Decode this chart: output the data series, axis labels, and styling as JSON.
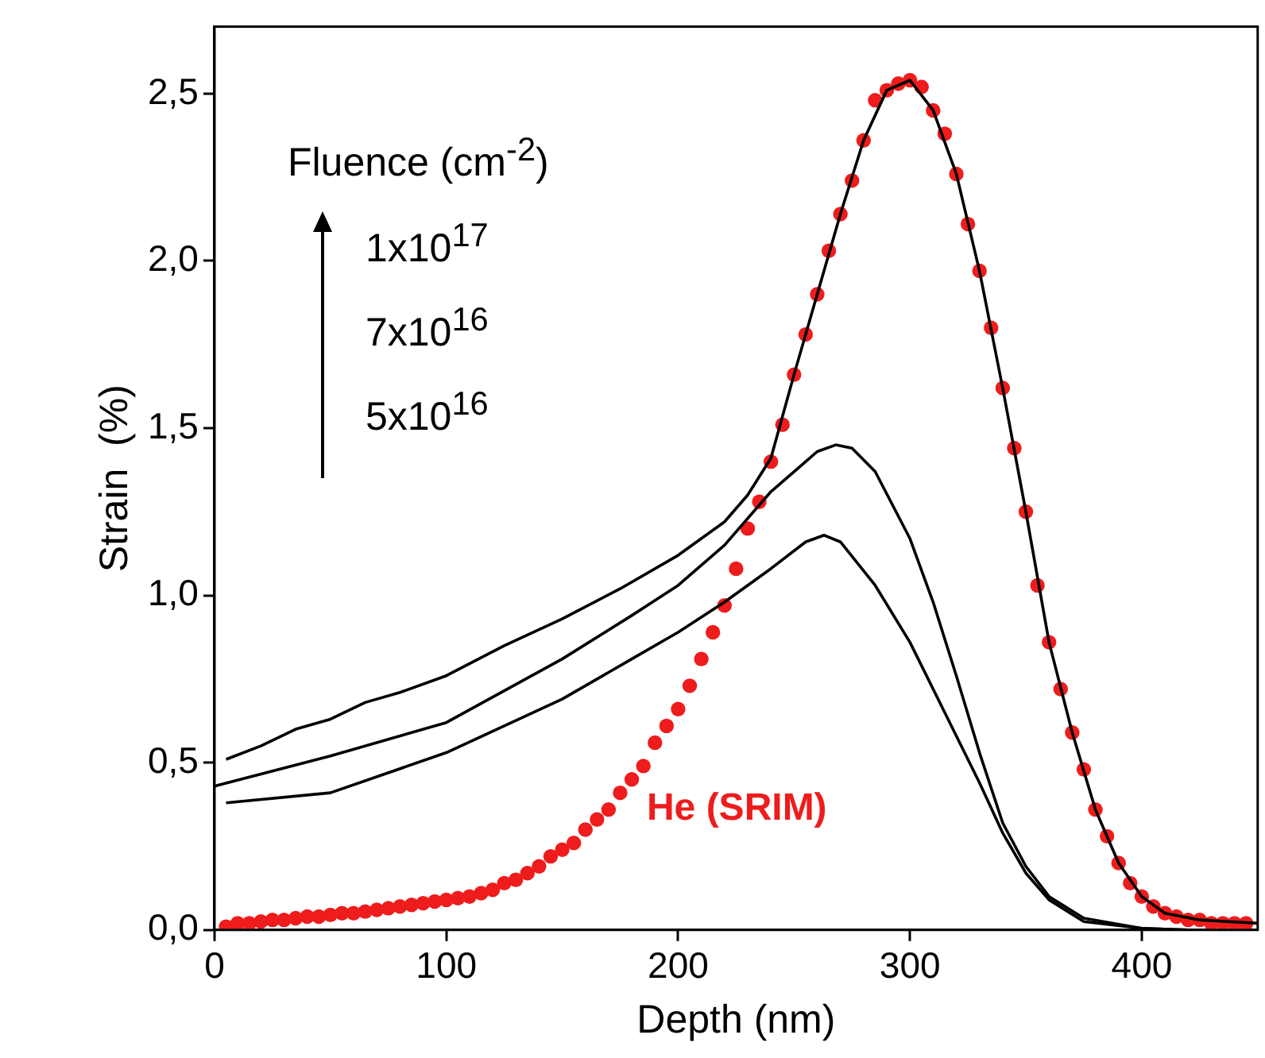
{
  "chart_data": {
    "type": "line",
    "xlabel": "Depth (nm)",
    "ylabel": "Strain  (%)",
    "xlim": [
      0,
      450
    ],
    "ylim": [
      0,
      2.7
    ],
    "xticks": [
      0,
      100,
      200,
      300,
      400
    ],
    "yticks": [
      {
        "value": 0,
        "label": "0,0"
      },
      {
        "value": 0.5,
        "label": "0,5"
      },
      {
        "value": 1,
        "label": "1,0"
      },
      {
        "value": 1.5,
        "label": "1,5"
      },
      {
        "value": 2,
        "label": "2,0"
      },
      {
        "value": 2.5,
        "label": "2,5"
      }
    ],
    "annotations": [
      "Fluence (cm$^{-2}$)",
      "1x10$^{17}$",
      "7x10$^{16}$",
      "5x10$^{16}$"
    ],
    "series": [
      {
        "name": "He (SRIM)",
        "type": "scatter",
        "marker": "circle",
        "color": "#ee1c1c",
        "x": [
          5,
          10,
          15,
          20,
          25,
          30,
          35,
          40,
          45,
          50,
          55,
          60,
          65,
          70,
          75,
          80,
          85,
          90,
          95,
          100,
          105,
          110,
          115,
          120,
          125,
          130,
          135,
          140,
          145,
          150,
          155,
          160,
          165,
          170,
          175,
          180,
          185,
          190,
          195,
          200,
          205,
          210,
          215,
          220,
          225,
          230,
          235,
          240,
          245,
          250,
          255,
          260,
          265,
          270,
          275,
          280,
          285,
          290,
          295,
          300,
          305,
          310,
          315,
          320,
          325,
          330,
          335,
          340,
          345,
          350,
          355,
          360,
          365,
          370,
          375,
          380,
          385,
          390,
          395,
          400,
          405,
          410,
          415,
          420,
          425,
          430,
          435,
          440,
          445
        ],
        "values": [
          0.01,
          0.02,
          0.02,
          0.025,
          0.03,
          0.03,
          0.035,
          0.04,
          0.04,
          0.045,
          0.05,
          0.05,
          0.055,
          0.06,
          0.065,
          0.07,
          0.075,
          0.08,
          0.085,
          0.09,
          0.095,
          0.1,
          0.11,
          0.12,
          0.14,
          0.15,
          0.17,
          0.19,
          0.22,
          0.24,
          0.26,
          0.3,
          0.33,
          0.36,
          0.41,
          0.45,
          0.49,
          0.56,
          0.61,
          0.66,
          0.73,
          0.81,
          0.89,
          0.97,
          1.08,
          1.2,
          1.28,
          1.4,
          1.51,
          1.66,
          1.78,
          1.9,
          2.03,
          2.14,
          2.24,
          2.36,
          2.48,
          2.51,
          2.53,
          2.54,
          2.52,
          2.45,
          2.38,
          2.26,
          2.11,
          1.97,
          1.8,
          1.62,
          1.44,
          1.25,
          1.03,
          0.86,
          0.72,
          0.59,
          0.48,
          0.36,
          0.28,
          0.2,
          0.14,
          0.1,
          0.07,
          0.05,
          0.04,
          0.03,
          0.03,
          0.02,
          0.02,
          0.02,
          0.02
        ]
      },
      {
        "marker": "none",
        "color": "#000000",
        "x": [
          5,
          20,
          35,
          50,
          65,
          80,
          100,
          125,
          150,
          175,
          200,
          220,
          230,
          240,
          250,
          260,
          270,
          280,
          290,
          300,
          310,
          320,
          330,
          340,
          350,
          360,
          370,
          380,
          390,
          400,
          410,
          425,
          450
        ],
        "values": [
          0.51,
          0.55,
          0.6,
          0.63,
          0.68,
          0.71,
          0.76,
          0.85,
          0.93,
          1.02,
          1.12,
          1.22,
          1.3,
          1.41,
          1.66,
          1.9,
          2.14,
          2.36,
          2.51,
          2.54,
          2.45,
          2.26,
          1.97,
          1.62,
          1.25,
          0.86,
          0.59,
          0.36,
          0.2,
          0.1,
          0.05,
          0.03,
          0.02
        ]
      },
      {
        "marker": "none",
        "color": "#000000",
        "x": [
          0,
          50,
          100,
          150,
          180,
          200,
          220,
          240,
          250,
          260,
          268,
          275,
          285,
          300,
          310,
          320,
          330,
          340,
          350,
          360,
          375,
          400,
          420
        ],
        "values": [
          0.43,
          0.52,
          0.62,
          0.81,
          0.94,
          1.03,
          1.15,
          1.31,
          1.37,
          1.43,
          1.45,
          1.44,
          1.37,
          1.17,
          0.98,
          0.76,
          0.53,
          0.32,
          0.19,
          0.1,
          0.035,
          0.005,
          0
        ]
      },
      {
        "marker": "none",
        "color": "#000000",
        "x": [
          5,
          50,
          100,
          150,
          180,
          200,
          220,
          240,
          255,
          263,
          270,
          285,
          300,
          315,
          330,
          340,
          350,
          360,
          375,
          400,
          420
        ],
        "values": [
          0.38,
          0.41,
          0.53,
          0.69,
          0.81,
          0.89,
          0.98,
          1.08,
          1.16,
          1.18,
          1.16,
          1.03,
          0.86,
          0.65,
          0.44,
          0.29,
          0.17,
          0.09,
          0.025,
          0.005,
          0
        ]
      }
    ]
  }
}
